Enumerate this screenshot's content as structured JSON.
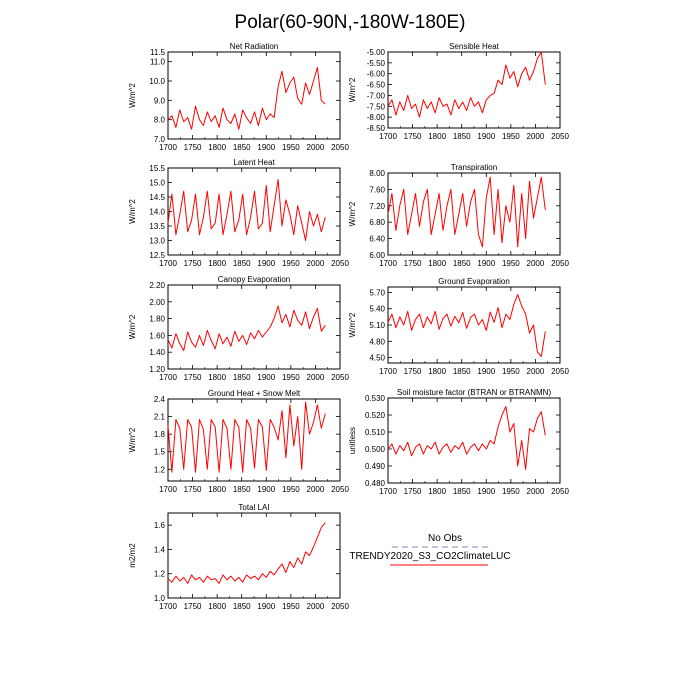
{
  "figure_title": "Polar(60-90N,-180W-180E)",
  "colors": {
    "series": "#ff0000",
    "obs": "#9a9ac8",
    "axis": "#000000"
  },
  "legend": {
    "entries": [
      {
        "label": "No Obs",
        "style": "dashed",
        "color": "#9a9ac8"
      },
      {
        "label": "TRENDY2020_S3_CO2ClimateLUC",
        "style": "solid",
        "color": "#ff0000"
      }
    ]
  },
  "chart_data": [
    {
      "id": "net-radiation",
      "type": "line",
      "title": "Net Radiation",
      "ylabel": "W/m^2",
      "xlim": [
        1700,
        2050
      ],
      "xticks": [
        1700,
        1750,
        1800,
        1850,
        1900,
        1950,
        2000,
        2050
      ],
      "ylim": [
        7.0,
        11.5
      ],
      "yticks": [
        "7.0",
        "8.0",
        "9.0",
        "10.0",
        "11.0",
        "11.5"
      ],
      "series": [
        {
          "name": "TRENDY2020_S3_CO2ClimateLUC",
          "x_start": 1700,
          "x_end": 2020,
          "values": [
            8.0,
            8.2,
            7.6,
            8.5,
            7.9,
            8.1,
            7.5,
            8.7,
            8.0,
            7.7,
            8.4,
            7.9,
            8.2,
            7.6,
            8.6,
            8.0,
            7.8,
            8.3,
            7.5,
            8.5,
            8.1,
            7.8,
            8.4,
            7.7,
            8.6,
            8.0,
            8.3,
            8.1,
            9.7,
            10.5,
            9.4,
            9.9,
            10.2,
            9.1,
            8.8,
            9.9,
            9.3,
            10.0,
            10.7,
            9.0,
            8.8
          ]
        }
      ]
    },
    {
      "id": "sensible-heat",
      "type": "line",
      "title": "Sensible Heat",
      "ylabel": "W/m^2",
      "xlim": [
        1700,
        2050
      ],
      "xticks": [
        1700,
        1750,
        1800,
        1850,
        1900,
        1950,
        2000,
        2050
      ],
      "ylim": [
        -8.5,
        -5.0
      ],
      "yticks": [
        "-8.50",
        "-8.00",
        "-7.50",
        "-7.00",
        "-6.50",
        "-6.00",
        "-5.50",
        "-5.00"
      ],
      "series": [
        {
          "name": "TRENDY2020_S3_CO2ClimateLUC",
          "x_start": 1700,
          "x_end": 2020,
          "values": [
            -7.5,
            -7.2,
            -7.9,
            -7.3,
            -7.7,
            -7.0,
            -7.6,
            -7.4,
            -8.0,
            -7.2,
            -7.6,
            -7.3,
            -7.8,
            -7.1,
            -7.5,
            -7.4,
            -7.9,
            -7.2,
            -7.6,
            -7.3,
            -7.7,
            -7.1,
            -7.5,
            -7.3,
            -7.8,
            -7.2,
            -7.0,
            -6.9,
            -6.3,
            -6.5,
            -5.6,
            -6.2,
            -5.9,
            -6.6,
            -6.0,
            -5.7,
            -6.3,
            -5.9,
            -5.3,
            -5.0,
            -6.5
          ]
        }
      ]
    },
    {
      "id": "latent-heat",
      "type": "line",
      "title": "Latent Heat",
      "ylabel": "W/m^2",
      "xlim": [
        1700,
        2050
      ],
      "xticks": [
        1700,
        1750,
        1800,
        1850,
        1900,
        1950,
        2000,
        2050
      ],
      "ylim": [
        12.5,
        15.5
      ],
      "yticks": [
        "12.5",
        "13.0",
        "13.5",
        "14.0",
        "14.5",
        "15.0",
        "15.5"
      ],
      "series": [
        {
          "name": "TRENDY2020_S3_CO2ClimateLUC",
          "x_start": 1700,
          "x_end": 2020,
          "values": [
            13.6,
            14.6,
            13.2,
            13.9,
            14.7,
            13.3,
            13.7,
            14.6,
            13.2,
            13.8,
            14.7,
            13.4,
            13.6,
            14.6,
            13.2,
            13.9,
            14.7,
            13.3,
            13.7,
            14.6,
            13.2,
            13.8,
            14.7,
            13.4,
            13.6,
            14.9,
            13.3,
            14.2,
            15.1,
            13.5,
            14.4,
            13.9,
            13.2,
            14.2,
            13.6,
            13.0,
            14.0,
            13.5,
            13.9,
            13.3,
            13.8
          ]
        }
      ]
    },
    {
      "id": "transpiration",
      "type": "line",
      "title": "Transpiration",
      "ylabel": "W/m^2",
      "xlim": [
        1700,
        2050
      ],
      "xticks": [
        1700,
        1750,
        1800,
        1850,
        1900,
        1950,
        2000,
        2050
      ],
      "ylim": [
        6.0,
        8.0
      ],
      "yticks": [
        "6.00",
        "6.40",
        "6.80",
        "7.20",
        "7.60",
        "8.00"
      ],
      "series": [
        {
          "name": "TRENDY2020_S3_CO2ClimateLUC",
          "x_start": 1700,
          "x_end": 2020,
          "values": [
            7.0,
            7.5,
            6.6,
            7.2,
            7.6,
            6.5,
            7.0,
            7.5,
            6.7,
            7.3,
            7.6,
            6.5,
            7.0,
            7.5,
            6.6,
            7.2,
            7.6,
            6.5,
            7.0,
            7.5,
            6.7,
            7.3,
            7.6,
            6.5,
            6.2,
            7.4,
            7.9,
            6.5,
            7.6,
            6.3,
            7.2,
            6.8,
            7.7,
            6.2,
            7.5,
            6.4,
            7.8,
            6.9,
            7.4,
            7.9,
            7.1
          ]
        }
      ]
    },
    {
      "id": "canopy-evaporation",
      "type": "line",
      "title": "Canopy Evaporation",
      "ylabel": "W/m^2",
      "xlim": [
        1700,
        2050
      ],
      "xticks": [
        1700,
        1750,
        1800,
        1850,
        1900,
        1950,
        2000,
        2050
      ],
      "ylim": [
        1.2,
        2.2
      ],
      "yticks": [
        "1.20",
        "1.40",
        "1.60",
        "1.80",
        "2.00",
        "2.20"
      ],
      "series": [
        {
          "name": "TRENDY2020_S3_CO2ClimateLUC",
          "x_start": 1700,
          "x_end": 2020,
          "values": [
            1.55,
            1.45,
            1.62,
            1.5,
            1.42,
            1.64,
            1.52,
            1.46,
            1.6,
            1.48,
            1.66,
            1.54,
            1.44,
            1.62,
            1.5,
            1.58,
            1.47,
            1.65,
            1.53,
            1.6,
            1.49,
            1.63,
            1.56,
            1.66,
            1.58,
            1.64,
            1.7,
            1.8,
            1.95,
            1.75,
            1.85,
            1.7,
            1.9,
            1.78,
            1.72,
            1.88,
            1.68,
            1.82,
            1.92,
            1.65,
            1.72
          ]
        }
      ]
    },
    {
      "id": "ground-evaporation",
      "type": "line",
      "title": "Ground Evaporation",
      "ylabel": "W/m^2",
      "xlim": [
        1700,
        2050
      ],
      "xticks": [
        1700,
        1750,
        1800,
        1850,
        1900,
        1950,
        2000,
        2050
      ],
      "ylim": [
        4.4,
        5.8
      ],
      "yticks": [
        "4.50",
        "4.80",
        "5.10",
        "5.40",
        "5.70"
      ],
      "series": [
        {
          "name": "TRENDY2020_S3_CO2ClimateLUC",
          "x_start": 1700,
          "x_end": 2020,
          "values": [
            5.15,
            5.3,
            5.05,
            5.25,
            5.1,
            5.35,
            5.0,
            5.2,
            5.3,
            5.05,
            5.25,
            5.12,
            5.35,
            5.02,
            5.22,
            5.3,
            5.08,
            5.26,
            5.14,
            5.33,
            5.04,
            5.24,
            5.3,
            5.1,
            5.2,
            5.0,
            5.34,
            5.15,
            5.42,
            5.05,
            5.3,
            5.2,
            5.48,
            5.66,
            5.45,
            5.3,
            4.95,
            5.1,
            4.6,
            4.52,
            4.98
          ]
        }
      ]
    },
    {
      "id": "ground-heat-snow-melt",
      "type": "line",
      "title": "Ground Heat + Snow Melt",
      "ylabel": "W/m^2",
      "xlim": [
        1700,
        2050
      ],
      "xticks": [
        1700,
        1750,
        1800,
        1850,
        1900,
        1950,
        2000,
        2050
      ],
      "ylim": [
        1.0,
        2.4
      ],
      "yticks": [
        "1.2",
        "1.5",
        "1.8",
        "2.1",
        "2.4"
      ],
      "series": [
        {
          "name": "TRENDY2020_S3_CO2ClimateLUC",
          "x_start": 1700,
          "x_end": 2020,
          "values": [
            1.95,
            1.15,
            2.05,
            1.9,
            1.2,
            2.05,
            1.92,
            1.15,
            2.05,
            1.88,
            1.2,
            2.05,
            1.92,
            1.15,
            2.05,
            1.9,
            1.2,
            2.05,
            1.92,
            1.15,
            2.05,
            1.9,
            1.22,
            2.05,
            1.92,
            1.18,
            2.05,
            1.92,
            1.7,
            2.2,
            1.4,
            2.3,
            1.6,
            2.1,
            1.2,
            2.35,
            1.8,
            2.0,
            2.3,
            1.9,
            2.15
          ]
        }
      ]
    },
    {
      "id": "soil-moisture-factor",
      "type": "line",
      "title": "Soil moisture factor (BTRAN or BTRANMN)",
      "ylabel": "unitless",
      "xlim": [
        1700,
        2050
      ],
      "xticks": [
        1700,
        1750,
        1800,
        1850,
        1900,
        1950,
        2000,
        2050
      ],
      "ylim": [
        0.48,
        0.53
      ],
      "yticks": [
        "0.480",
        "0.490",
        "0.500",
        "0.510",
        "0.520",
        "0.530"
      ],
      "series": [
        {
          "name": "TRENDY2020_S3_CO2ClimateLUC",
          "x_start": 1700,
          "x_end": 2020,
          "values": [
            0.5,
            0.503,
            0.497,
            0.502,
            0.499,
            0.504,
            0.496,
            0.501,
            0.503,
            0.497,
            0.502,
            0.5,
            0.504,
            0.497,
            0.501,
            0.503,
            0.498,
            0.502,
            0.5,
            0.504,
            0.497,
            0.501,
            0.503,
            0.499,
            0.503,
            0.5,
            0.505,
            0.503,
            0.513,
            0.52,
            0.525,
            0.51,
            0.515,
            0.49,
            0.505,
            0.488,
            0.512,
            0.51,
            0.518,
            0.522,
            0.508
          ]
        }
      ]
    },
    {
      "id": "total-lai",
      "type": "line",
      "title": "Total LAI",
      "ylabel": "m2/m2",
      "xlim": [
        1700,
        2050
      ],
      "xticks": [
        1700,
        1750,
        1800,
        1850,
        1900,
        1950,
        2000,
        2050
      ],
      "ylim": [
        1.0,
        1.7
      ],
      "yticks": [
        "1.0",
        "1.2",
        "1.4",
        "1.6"
      ],
      "series": [
        {
          "name": "TRENDY2020_S3_CO2ClimateLUC",
          "x_start": 1700,
          "x_end": 2020,
          "values": [
            1.16,
            1.13,
            1.18,
            1.14,
            1.17,
            1.12,
            1.19,
            1.15,
            1.17,
            1.13,
            1.18,
            1.15,
            1.16,
            1.12,
            1.19,
            1.15,
            1.18,
            1.14,
            1.17,
            1.13,
            1.19,
            1.16,
            1.18,
            1.15,
            1.2,
            1.17,
            1.22,
            1.19,
            1.24,
            1.28,
            1.21,
            1.3,
            1.25,
            1.33,
            1.28,
            1.38,
            1.35,
            1.42,
            1.5,
            1.58,
            1.62
          ]
        }
      ]
    }
  ]
}
